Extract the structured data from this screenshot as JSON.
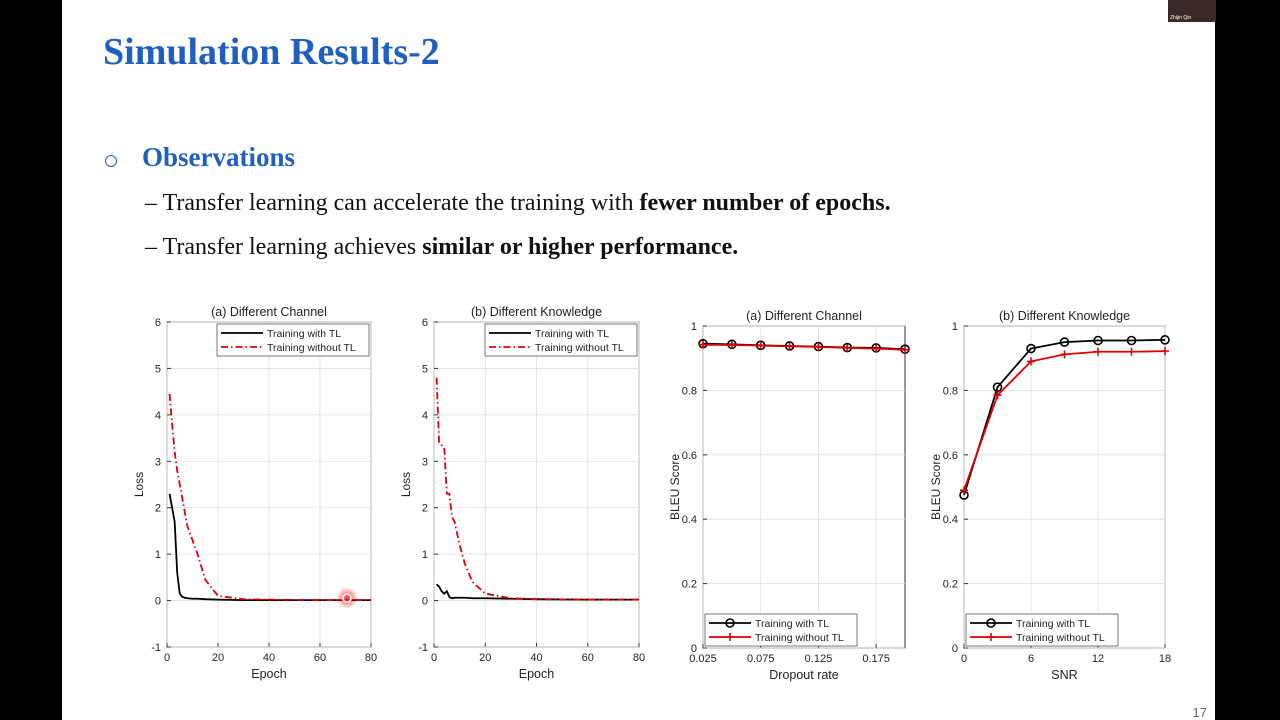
{
  "slide": {
    "title": "Simulation Results-2",
    "heading": "Observations",
    "bullets": [
      {
        "text": "– Transfer learning can accelerate the training with ",
        "bold": "fewer number of epochs."
      },
      {
        "text": "– Transfer learning achieves ",
        "bold": "similar or higher performance."
      }
    ],
    "page_number": "17"
  },
  "video": {
    "name": "Zhijin Qin"
  },
  "chart_data": [
    {
      "type": "line",
      "title": "(a) Different Channel",
      "x_label": "Epoch",
      "y_label": "Loss",
      "x": [
        1,
        2,
        3,
        4,
        5,
        6,
        7,
        8,
        10,
        12,
        15,
        20,
        30,
        40,
        60,
        80
      ],
      "series": [
        {
          "name": "Training with TL",
          "color": "#000000",
          "dash": "solid",
          "values": [
            2.3,
            2.0,
            1.7,
            0.6,
            0.15,
            0.08,
            0.06,
            0.05,
            0.04,
            0.04,
            0.03,
            0.02,
            0.01,
            0.01,
            0.01,
            0.01
          ]
        },
        {
          "name": "Training without TL",
          "color": "#e00000",
          "dash": "dashdot",
          "values": [
            4.45,
            3.8,
            3.2,
            2.8,
            2.5,
            2.2,
            1.9,
            1.6,
            1.3,
            1.0,
            0.45,
            0.1,
            0.03,
            0.02,
            0.01,
            0.01
          ]
        }
      ],
      "xlim": [
        0,
        80
      ],
      "xticks": [
        0,
        20,
        40,
        60,
        80
      ],
      "ylim": [
        -1,
        6
      ],
      "yticks": [
        -1,
        0,
        1,
        2,
        3,
        4,
        5,
        6
      ],
      "grid": true,
      "legend": "upper right"
    },
    {
      "type": "line",
      "title": "(b) Different Knowledge",
      "x_label": "Epoch",
      "y_label": "Loss",
      "x": [
        1,
        2,
        3,
        4,
        5,
        6,
        7,
        8,
        10,
        12,
        15,
        20,
        30,
        40,
        60,
        80
      ],
      "series": [
        {
          "name": "Training with TL",
          "color": "#000000",
          "dash": "solid",
          "values": [
            0.35,
            0.3,
            0.2,
            0.15,
            0.2,
            0.08,
            0.05,
            0.06,
            0.06,
            0.06,
            0.05,
            0.05,
            0.04,
            0.03,
            0.02,
            0.02
          ]
        },
        {
          "name": "Training without TL",
          "color": "#e00000",
          "dash": "dashdot",
          "values": [
            4.8,
            3.4,
            3.35,
            3.3,
            2.3,
            2.3,
            1.8,
            1.7,
            1.2,
            0.8,
            0.4,
            0.15,
            0.05,
            0.03,
            0.02,
            0.02
          ]
        }
      ],
      "xlim": [
        0,
        80
      ],
      "xticks": [
        0,
        20,
        40,
        60,
        80
      ],
      "ylim": [
        -1,
        6
      ],
      "yticks": [
        -1,
        0,
        1,
        2,
        3,
        4,
        5,
        6
      ],
      "grid": true,
      "legend": "upper right"
    },
    {
      "type": "line",
      "title": "(a) Different Channel",
      "x_label": "Dropout rate",
      "y_label": "BLEU Score",
      "x": [
        0.025,
        0.05,
        0.075,
        0.1,
        0.125,
        0.15,
        0.175,
        0.2
      ],
      "series": [
        {
          "name": "Training with TL",
          "color": "#000000",
          "marker": "o",
          "values": [
            0.945,
            0.943,
            0.94,
            0.938,
            0.936,
            0.933,
            0.932,
            0.928
          ]
        },
        {
          "name": "Training without TL",
          "color": "#e00000",
          "marker": "+",
          "values": [
            0.942,
            0.941,
            0.939,
            0.937,
            0.935,
            0.932,
            0.93,
            0.926
          ]
        }
      ],
      "xlim": [
        0.025,
        0.2
      ],
      "xticks": [
        0.025,
        0.075,
        0.125,
        0.175
      ],
      "ylim": [
        0,
        1
      ],
      "yticks": [
        0,
        0.2,
        0.4,
        0.6,
        0.8,
        1
      ],
      "grid": true,
      "legend": "lower left"
    },
    {
      "type": "line",
      "title": "(b) Different Knowledge",
      "x_label": "SNR",
      "y_label": "BLEU Score",
      "x": [
        0,
        3,
        6,
        9,
        12,
        15,
        18
      ],
      "series": [
        {
          "name": "Training with TL",
          "color": "#000000",
          "marker": "o",
          "values": [
            0.475,
            0.81,
            0.93,
            0.95,
            0.955,
            0.955,
            0.957
          ]
        },
        {
          "name": "Training without TL",
          "color": "#e00000",
          "marker": "+",
          "values": [
            0.49,
            0.785,
            0.89,
            0.912,
            0.92,
            0.92,
            0.922
          ]
        }
      ],
      "xlim": [
        0,
        18
      ],
      "xticks": [
        0,
        6,
        12,
        18
      ],
      "ylim": [
        0,
        1
      ],
      "yticks": [
        0,
        0.2,
        0.4,
        0.6,
        0.8,
        1
      ],
      "grid": true,
      "legend": "lower left"
    }
  ]
}
